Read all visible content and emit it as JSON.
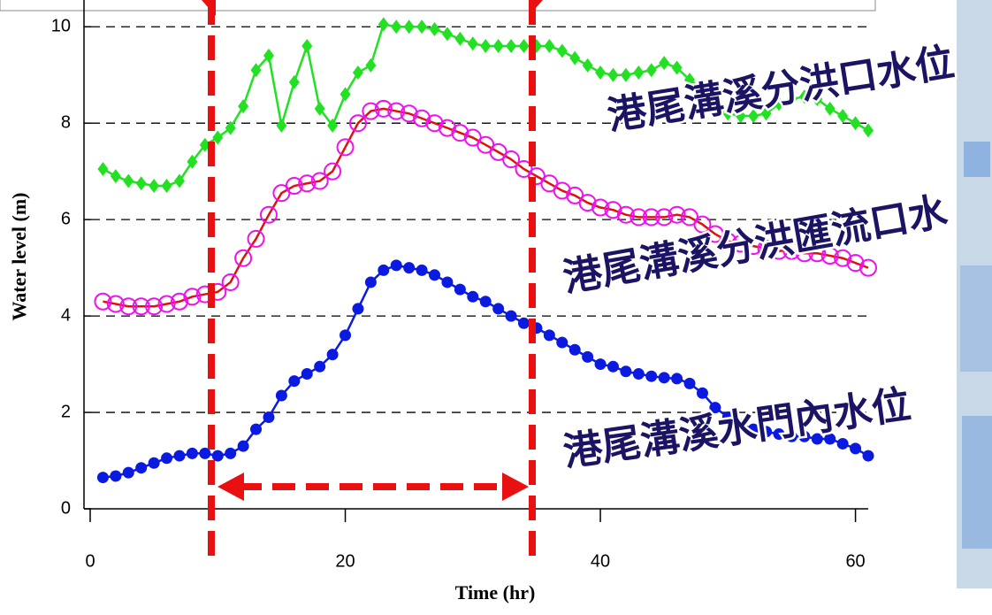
{
  "chart_data": {
    "type": "line",
    "x_label": "Time (hr)",
    "y_label": "Water level (m)",
    "annotations": [
      "港尾溝溪分洪口水位",
      "港尾溝溪分洪匯流口水",
      "港尾溝溪水門內水位"
    ],
    "x": [
      1,
      2,
      3,
      4,
      5,
      6,
      7,
      8,
      9,
      10,
      11,
      12,
      13,
      14,
      15,
      16,
      17,
      18,
      19,
      20,
      21,
      22,
      23,
      24,
      25,
      26,
      27,
      28,
      29,
      30,
      31,
      32,
      33,
      34,
      35,
      36,
      37,
      38,
      39,
      40,
      41,
      42,
      43,
      44,
      45,
      46,
      47,
      48,
      49,
      50,
      51,
      52,
      53,
      54,
      55,
      56,
      57,
      58,
      59,
      60,
      61
    ],
    "series": [
      {
        "color": "#22e022",
        "marker": "diamond",
        "values": [
          7.05,
          6.9,
          6.8,
          6.75,
          6.7,
          6.7,
          6.8,
          7.2,
          7.55,
          7.7,
          7.9,
          8.35,
          9.1,
          9.4,
          7.95,
          8.85,
          9.6,
          8.3,
          7.95,
          8.6,
          9.05,
          9.2,
          10.05,
          10.0,
          10.0,
          10.0,
          9.95,
          9.85,
          9.75,
          9.65,
          9.6,
          9.6,
          9.6,
          9.6,
          9.6,
          9.6,
          9.5,
          9.35,
          9.2,
          9.05,
          9.0,
          9.0,
          9.05,
          9.1,
          9.25,
          9.15,
          8.9,
          8.7,
          8.4,
          8.2,
          8.15,
          8.15,
          8.2,
          8.4,
          8.5,
          8.55,
          8.5,
          8.3,
          8.15,
          8.0,
          7.85
        ]
      },
      {
        "color": "#e01010",
        "marker_color": "#ee10ee",
        "marker": "circle",
        "values": [
          4.3,
          4.25,
          4.2,
          4.2,
          4.2,
          4.25,
          4.3,
          4.4,
          4.45,
          4.5,
          4.7,
          5.2,
          5.6,
          6.1,
          6.55,
          6.7,
          6.75,
          6.8,
          7.0,
          7.5,
          8.0,
          8.25,
          8.3,
          8.25,
          8.2,
          8.1,
          8.0,
          7.9,
          7.8,
          7.7,
          7.55,
          7.4,
          7.25,
          7.05,
          6.9,
          6.75,
          6.6,
          6.5,
          6.35,
          6.25,
          6.2,
          6.1,
          6.05,
          6.05,
          6.05,
          6.1,
          6.05,
          5.9,
          5.7,
          5.55,
          5.5,
          5.45,
          5.4,
          5.35,
          5.35,
          5.3,
          5.3,
          5.25,
          5.2,
          5.1,
          5.0
        ]
      },
      {
        "color": "#0a1ae0",
        "marker": "dot",
        "values": [
          0.65,
          0.68,
          0.75,
          0.85,
          0.95,
          1.05,
          1.1,
          1.15,
          1.15,
          1.1,
          1.15,
          1.3,
          1.65,
          1.9,
          2.35,
          2.65,
          2.8,
          2.95,
          3.2,
          3.6,
          4.15,
          4.7,
          4.95,
          5.05,
          5.0,
          4.95,
          4.85,
          4.7,
          4.55,
          4.4,
          4.3,
          4.15,
          4.0,
          3.85,
          3.75,
          3.6,
          3.45,
          3.3,
          3.15,
          3.0,
          2.95,
          2.85,
          2.8,
          2.75,
          2.72,
          2.7,
          2.6,
          2.4,
          2.1,
          1.9,
          1.75,
          1.65,
          1.6,
          1.55,
          1.5,
          1.5,
          1.45,
          1.45,
          1.35,
          1.25,
          1.1
        ]
      }
    ],
    "xlim": [
      0,
      61
    ],
    "ylim": [
      0,
      10.5
    ],
    "xticks": [
      0,
      20,
      40,
      60
    ],
    "yticks": [
      0,
      2,
      4,
      6,
      8,
      10
    ],
    "grid": true
  }
}
